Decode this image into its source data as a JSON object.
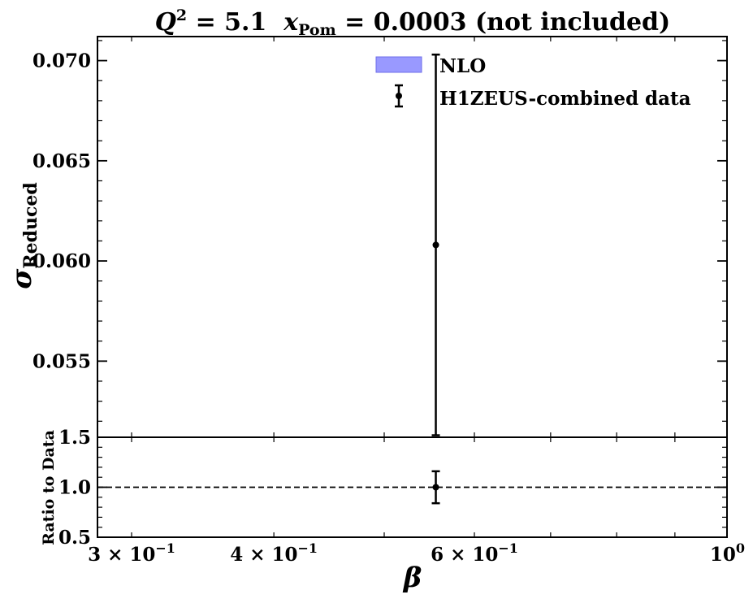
{
  "chart_data": {
    "type": "errorbar",
    "title": "Q² = 5.1  x_Pom = 0.0003 (not included)",
    "title_parts": {
      "q": "Q",
      "q_exp": "2",
      "q_eq": " = 5.1  ",
      "x": "x",
      "x_sub": "Pom",
      "x_eq": " = 0.0003 (not included)"
    },
    "top_panel": {
      "ylabel": "σ",
      "ylabel_sub": "Reduced",
      "ylim": [
        0.0512,
        0.0712
      ],
      "yticks": [
        0.055,
        0.06,
        0.065,
        0.07
      ],
      "ytick_labels": [
        "0.055",
        "0.060",
        "0.065",
        "0.070"
      ],
      "series": [
        {
          "name": "H1ZEUS-combined data",
          "x": [
            0.555
          ],
          "y": [
            0.0608
          ],
          "yerr": [
            0.0095
          ]
        }
      ],
      "legend": {
        "location": "top-center",
        "entries": [
          {
            "label": "NLO",
            "kind": "band",
            "color": "#9999ff"
          },
          {
            "label": "H1ZEUS-combined data",
            "kind": "errorbar",
            "color": "#000000"
          }
        ]
      }
    },
    "bottom_panel": {
      "ylabel": "Ratio to Data",
      "ylim": [
        0.5,
        1.5
      ],
      "yticks": [
        0.5,
        1.0,
        1.5
      ],
      "ytick_labels": [
        "0.5",
        "1.0",
        "1.5"
      ],
      "reference_line": 1.0,
      "series": [
        {
          "name": "ratio",
          "x": [
            0.555
          ],
          "y": [
            1.0
          ],
          "yerr": [
            0.16
          ]
        }
      ]
    },
    "xaxis": {
      "xlabel": "β",
      "scale": "log",
      "xlim": [
        0.28,
        1.0
      ],
      "xticks": [
        0.3,
        0.4,
        0.6,
        1.0
      ],
      "xtick_mantissa": [
        "3 × 10",
        "4 × 10",
        "6 × 10",
        "10"
      ],
      "xtick_exponent": [
        "−1",
        "−1",
        "−1",
        "0"
      ]
    }
  }
}
